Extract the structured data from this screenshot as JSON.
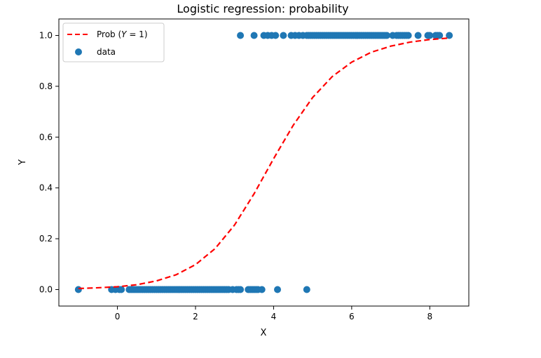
{
  "chart_data": {
    "type": "scatter",
    "title": "Logistic regression: probability",
    "xlabel": "X",
    "ylabel": "Y",
    "xlim": [
      -1.5,
      9.0
    ],
    "ylim": [
      -0.065,
      1.065
    ],
    "xticks": [
      0,
      2,
      4,
      6,
      8
    ],
    "yticks": [
      0.0,
      0.2,
      0.4,
      0.6,
      0.8,
      1.0
    ],
    "legend_position": "top-left",
    "grid": false,
    "colors": {
      "points": "#1f77b4",
      "curve": "#ff0000"
    },
    "series": [
      {
        "name": "data",
        "kind": "scatter",
        "x": [
          -1.0,
          -0.15,
          -0.05,
          0.05,
          0.1,
          0.3,
          0.35,
          0.4,
          0.45,
          0.5,
          0.55,
          0.6,
          0.65,
          0.7,
          0.75,
          0.8,
          0.85,
          0.9,
          0.95,
          1.0,
          1.05,
          1.1,
          1.15,
          1.2,
          1.25,
          1.3,
          1.35,
          1.4,
          1.45,
          1.5,
          1.55,
          1.6,
          1.65,
          1.7,
          1.75,
          1.8,
          1.85,
          1.9,
          1.95,
          2.0,
          2.05,
          2.1,
          2.15,
          2.2,
          2.25,
          2.3,
          2.35,
          2.4,
          2.45,
          2.5,
          2.55,
          2.6,
          2.65,
          2.7,
          2.75,
          2.8,
          2.85,
          2.95,
          3.05,
          3.1,
          3.15,
          3.35,
          3.4,
          3.45,
          3.5,
          3.55,
          3.6,
          3.7,
          4.1,
          4.85,
          3.15,
          3.5,
          3.75,
          3.85,
          3.95,
          4.05,
          4.25,
          4.45,
          4.55,
          4.65,
          4.75,
          4.85,
          4.9,
          4.95,
          5.0,
          5.05,
          5.1,
          5.15,
          5.2,
          5.25,
          5.3,
          5.35,
          5.4,
          5.45,
          5.5,
          5.55,
          5.6,
          5.65,
          5.7,
          5.75,
          5.8,
          5.85,
          5.9,
          5.95,
          6.0,
          6.05,
          6.1,
          6.15,
          6.2,
          6.25,
          6.3,
          6.35,
          6.4,
          6.45,
          6.5,
          6.55,
          6.6,
          6.65,
          6.7,
          6.75,
          6.8,
          6.85,
          6.9,
          7.05,
          7.15,
          7.2,
          7.25,
          7.3,
          7.35,
          7.4,
          7.45,
          7.7,
          7.95,
          8.0,
          8.15,
          8.2,
          8.25,
          8.5
        ],
        "y": [
          0,
          0,
          0,
          0,
          0,
          0,
          0,
          0,
          0,
          0,
          0,
          0,
          0,
          0,
          0,
          0,
          0,
          0,
          0,
          0,
          0,
          0,
          0,
          0,
          0,
          0,
          0,
          0,
          0,
          0,
          0,
          0,
          0,
          0,
          0,
          0,
          0,
          0,
          0,
          0,
          0,
          0,
          0,
          0,
          0,
          0,
          0,
          0,
          0,
          0,
          0,
          0,
          0,
          0,
          0,
          0,
          0,
          0,
          0,
          0,
          0,
          0,
          0,
          0,
          0,
          0,
          0,
          0,
          0,
          0,
          1,
          1,
          1,
          1,
          1,
          1,
          1,
          1,
          1,
          1,
          1,
          1,
          1,
          1,
          1,
          1,
          1,
          1,
          1,
          1,
          1,
          1,
          1,
          1,
          1,
          1,
          1,
          1,
          1,
          1,
          1,
          1,
          1,
          1,
          1,
          1,
          1,
          1,
          1,
          1,
          1,
          1,
          1,
          1,
          1,
          1,
          1,
          1,
          1,
          1,
          1,
          1,
          1,
          1,
          1,
          1,
          1,
          1,
          1,
          1,
          1,
          1,
          1,
          1,
          1,
          1,
          1,
          1
        ]
      },
      {
        "name": "Prob (Y = 1)",
        "legend_label": {
          "prefix": "Prob (",
          "var": "Y",
          "suffix": " = 1)"
        },
        "kind": "line",
        "style": "dashed",
        "x": [
          -1.0,
          -0.5,
          0.0,
          0.5,
          1.0,
          1.5,
          2.0,
          2.5,
          3.0,
          3.5,
          4.0,
          4.5,
          5.0,
          5.5,
          6.0,
          6.5,
          7.0,
          7.5,
          8.0,
          8.5
        ],
        "y": [
          0.004,
          0.007,
          0.011,
          0.019,
          0.034,
          0.058,
          0.098,
          0.161,
          0.254,
          0.377,
          0.515,
          0.646,
          0.756,
          0.838,
          0.895,
          0.934,
          0.958,
          0.974,
          0.984,
          0.99
        ]
      }
    ]
  }
}
